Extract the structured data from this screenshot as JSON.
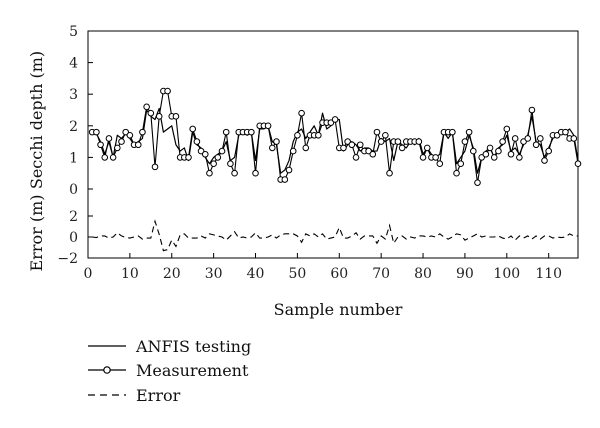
{
  "chart_data": {
    "type": "line",
    "xlabel": "Sample number",
    "x_ticks": [
      0,
      10,
      20,
      30,
      40,
      50,
      60,
      70,
      80,
      90,
      100,
      110
    ],
    "xlim": [
      0,
      117
    ],
    "upper_panel": {
      "ylabel": "Secchi depth (m)",
      "ylim": [
        0,
        5
      ],
      "y_ticks": [
        0,
        1,
        2,
        3,
        4,
        5
      ]
    },
    "lower_panel": {
      "ylabel": "Error (m)",
      "ylim": [
        -2,
        2
      ],
      "y_ticks": [
        -2,
        0,
        2
      ]
    },
    "legend_position": "bottom-left, below chart",
    "x": [
      1,
      2,
      3,
      4,
      5,
      6,
      7,
      8,
      9,
      10,
      11,
      12,
      13,
      14,
      15,
      16,
      17,
      18,
      19,
      20,
      21,
      22,
      23,
      24,
      25,
      26,
      27,
      28,
      29,
      30,
      31,
      32,
      33,
      34,
      35,
      36,
      37,
      38,
      39,
      40,
      41,
      42,
      43,
      44,
      45,
      46,
      47,
      48,
      49,
      50,
      51,
      52,
      53,
      54,
      55,
      56,
      57,
      58,
      59,
      60,
      61,
      62,
      63,
      64,
      65,
      66,
      67,
      68,
      69,
      70,
      71,
      72,
      73,
      74,
      75,
      76,
      77,
      78,
      79,
      80,
      81,
      82,
      83,
      84,
      85,
      86,
      87,
      88,
      89,
      90,
      91,
      92,
      93,
      94,
      95,
      96,
      97,
      98,
      99,
      100,
      101,
      102,
      103,
      104,
      105,
      106,
      107,
      108,
      109,
      110,
      111,
      112,
      113,
      114,
      115,
      116,
      117
    ],
    "series": [
      {
        "name": "ANFIS testing",
        "style": "solid",
        "color": "#000000",
        "values": [
          1.8,
          1.75,
          1.5,
          1.1,
          1.5,
          1.0,
          1.7,
          1.6,
          1.75,
          1.6,
          1.4,
          1.5,
          1.6,
          2.5,
          2.3,
          2.2,
          2.55,
          1.8,
          1.9,
          2.0,
          1.4,
          1.2,
          1.3,
          0.9,
          1.8,
          1.4,
          1.3,
          1.0,
          0.8,
          1.0,
          1.1,
          1.2,
          1.5,
          0.9,
          1.0,
          1.7,
          1.8,
          1.7,
          1.8,
          0.9,
          1.9,
          1.9,
          2.0,
          1.5,
          1.4,
          0.5,
          0.6,
          0.9,
          1.5,
          1.8,
          1.9,
          1.6,
          1.8,
          2.0,
          1.7,
          2.4,
          1.9,
          2.0,
          2.2,
          2.2,
          1.2,
          1.4,
          1.5,
          1.4,
          1.2,
          1.3,
          1.3,
          1.2,
          1.2,
          1.6,
          1.5,
          1.6,
          0.9,
          1.5,
          1.4,
          1.3,
          1.5,
          1.4,
          1.6,
          1.1,
          1.3,
          1.1,
          1.0,
          1.1,
          1.8,
          1.6,
          1.8,
          0.8,
          1.0,
          1.2,
          1.7,
          1.3,
          0.5,
          1.0,
          1.2,
          1.3,
          1.0,
          1.3,
          1.4,
          1.7,
          1.2,
          1.3,
          1.1,
          1.4,
          1.7,
          2.3,
          1.5,
          1.4,
          1.0,
          1.3,
          1.6,
          1.7,
          1.75,
          1.8,
          1.9,
          1.7,
          0.9
        ]
      },
      {
        "name": "Measurement",
        "style": "solid-with-circle-markers",
        "color": "#000000",
        "values": [
          1.8,
          1.8,
          1.4,
          1.0,
          1.6,
          1.0,
          1.3,
          1.5,
          1.8,
          1.7,
          1.4,
          1.4,
          1.8,
          2.6,
          2.4,
          0.7,
          2.3,
          3.1,
          3.1,
          2.3,
          2.3,
          1.0,
          1.0,
          1.0,
          1.9,
          1.5,
          1.2,
          1.1,
          0.5,
          0.8,
          1.0,
          1.2,
          1.8,
          0.8,
          0.5,
          1.8,
          1.8,
          1.8,
          1.8,
          0.5,
          2.0,
          2.0,
          2.0,
          1.3,
          1.5,
          0.3,
          0.3,
          0.6,
          1.2,
          1.7,
          2.4,
          1.3,
          1.7,
          1.7,
          1.7,
          2.1,
          2.1,
          2.1,
          2.2,
          1.3,
          1.3,
          1.5,
          1.4,
          1.0,
          1.4,
          1.2,
          1.2,
          1.1,
          1.8,
          1.5,
          1.7,
          0.5,
          1.5,
          1.5,
          1.3,
          1.5,
          1.5,
          1.5,
          1.5,
          1.0,
          1.3,
          1.0,
          1.0,
          0.8,
          1.8,
          1.8,
          1.8,
          0.5,
          0.8,
          1.5,
          1.8,
          1.2,
          0.2,
          1.0,
          1.1,
          1.3,
          1.0,
          1.2,
          1.5,
          1.9,
          1.1,
          1.6,
          1.0,
          1.5,
          1.6,
          2.5,
          1.4,
          1.6,
          0.9,
          1.2,
          1.7,
          1.7,
          1.8,
          1.8,
          1.6,
          1.6,
          0.8
        ]
      },
      {
        "name": "Error",
        "style": "dashed",
        "color": "#000000",
        "values": [
          0.0,
          -0.05,
          0.1,
          0.1,
          -0.1,
          0.0,
          0.4,
          0.1,
          -0.05,
          -0.1,
          0.0,
          0.1,
          -0.2,
          -0.1,
          -0.1,
          1.5,
          0.25,
          -1.3,
          -1.2,
          -0.3,
          -0.9,
          0.2,
          0.3,
          -0.1,
          -0.1,
          -0.1,
          0.1,
          -0.1,
          0.3,
          0.2,
          0.1,
          0.0,
          -0.3,
          0.1,
          0.5,
          -0.1,
          0.0,
          -0.1,
          0.0,
          0.4,
          -0.1,
          -0.1,
          0.0,
          0.2,
          -0.1,
          0.2,
          0.3,
          0.3,
          0.3,
          0.1,
          -0.5,
          0.3,
          0.1,
          0.3,
          0.0,
          0.3,
          -0.2,
          -0.1,
          0.0,
          0.9,
          -0.1,
          -0.1,
          0.1,
          0.4,
          -0.2,
          0.1,
          0.1,
          0.1,
          -0.6,
          0.1,
          -0.2,
          1.1,
          -0.6,
          0.0,
          0.1,
          -0.2,
          0.0,
          -0.1,
          0.1,
          0.1,
          0.0,
          0.1,
          0.0,
          0.3,
          0.0,
          -0.2,
          0.0,
          0.3,
          0.2,
          -0.3,
          -0.1,
          0.1,
          0.3,
          0.0,
          0.1,
          0.0,
          0.0,
          0.1,
          -0.1,
          -0.2,
          0.1,
          -0.3,
          0.1,
          -0.1,
          0.1,
          -0.2,
          0.1,
          -0.2,
          0.1,
          0.1,
          -0.1,
          0.0,
          -0.05,
          0.0,
          0.3,
          0.1,
          0.1
        ]
      }
    ]
  }
}
